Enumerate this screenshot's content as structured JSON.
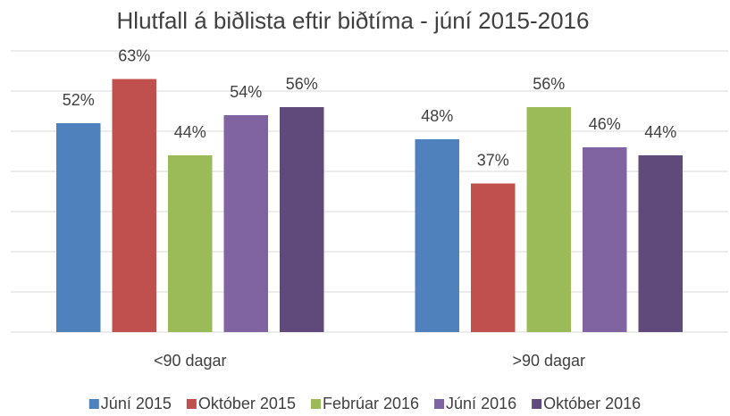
{
  "chart_data": {
    "type": "bar",
    "title": "Hlutfall á biðlista eftir biðtíma - júní 2015-2016",
    "categories": [
      "<90 dagar",
      ">90 dagar"
    ],
    "series": [
      {
        "name": "Júní 2015",
        "color": "#4f81bd",
        "values": [
          52,
          48
        ],
        "value_labels": [
          "52%",
          "48%"
        ]
      },
      {
        "name": "Október 2015",
        "color": "#c0504d",
        "values": [
          63,
          37
        ],
        "value_labels": [
          "63%",
          "37%"
        ]
      },
      {
        "name": "Febrúar 2016",
        "color": "#9bbb59",
        "values": [
          44,
          56
        ],
        "value_labels": [
          "44%",
          "56%"
        ]
      },
      {
        "name": "Júní 2016",
        "color": "#8064a2",
        "values": [
          54,
          46
        ],
        "value_labels": [
          "54%",
          "46%"
        ]
      },
      {
        "name": "Október 2016",
        "color": "#604a7b",
        "values": [
          56,
          44
        ],
        "value_labels": [
          "56%",
          "44%"
        ]
      }
    ],
    "ylim": [
      0,
      70
    ],
    "yticks": [
      0,
      10,
      20,
      30,
      40,
      50,
      60,
      70
    ],
    "grid": true,
    "legend": "bottom"
  }
}
